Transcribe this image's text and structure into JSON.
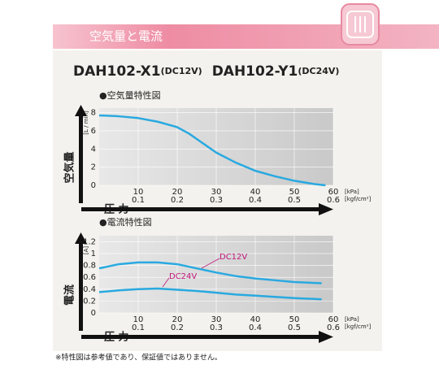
{
  "header": {
    "title": "空気量と電流"
  },
  "models": [
    {
      "model": "DAH102-X1",
      "voltage": "(DC12V)"
    },
    {
      "model": "DAH102-Y1",
      "voltage": "(DC24V)"
    }
  ],
  "footnote": "※特性図は参考値であり、保証値ではありません。",
  "chart_data": [
    {
      "type": "line",
      "title": "●空気量特性図",
      "x_label": "圧 力",
      "y_label": "空気量",
      "y_unit": "[L / min]",
      "x_unit": "[kPa]",
      "x2_unit": "[kgf/cm²]",
      "xlim": [
        0,
        60
      ],
      "xticks": [
        10,
        20,
        30,
        40,
        50,
        60
      ],
      "x2lim": [
        0,
        0.6
      ],
      "x2ticks": [
        0.1,
        0.2,
        0.3,
        0.4,
        0.5,
        0.6
      ],
      "ylim": [
        0,
        8.5
      ],
      "yticks": [
        0,
        2,
        4,
        6,
        8
      ],
      "grid": true,
      "series": [
        {
          "color": "#29a9e0",
          "x": [
            0,
            5,
            10,
            15,
            20,
            23,
            26,
            30,
            35,
            40,
            45,
            50,
            55,
            58
          ],
          "values": [
            7.7,
            7.6,
            7.4,
            7.0,
            6.4,
            5.7,
            4.8,
            3.6,
            2.5,
            1.6,
            1.0,
            0.5,
            0.15,
            0
          ]
        }
      ]
    },
    {
      "type": "line",
      "title": "●電流特性図",
      "x_label": "圧 力",
      "y_label": "電流",
      "y_unit": "[A]",
      "x_unit": "[kPa]",
      "x2_unit": "[kgf/cm²]",
      "xlim": [
        0,
        60
      ],
      "xticks": [
        10,
        20,
        30,
        40,
        50,
        60
      ],
      "x2lim": [
        0,
        0.6
      ],
      "x2ticks": [
        0.1,
        0.2,
        0.3,
        0.4,
        0.5,
        0.6
      ],
      "ylim": [
        0,
        1.3
      ],
      "yticks": [
        0,
        0.2,
        0.4,
        0.6,
        0.8,
        1,
        1.2
      ],
      "grid": true,
      "series": [
        {
          "name": "DC12V",
          "color": "#29a9e0",
          "x": [
            0,
            5,
            10,
            15,
            20,
            25,
            30,
            35,
            40,
            45,
            50,
            57
          ],
          "values": [
            0.75,
            0.82,
            0.85,
            0.85,
            0.82,
            0.75,
            0.68,
            0.62,
            0.58,
            0.55,
            0.52,
            0.5
          ]
        },
        {
          "name": "DC24V",
          "color": "#29a9e0",
          "x": [
            0,
            5,
            10,
            15,
            20,
            25,
            30,
            35,
            40,
            45,
            50,
            57
          ],
          "values": [
            0.35,
            0.38,
            0.4,
            0.41,
            0.39,
            0.37,
            0.34,
            0.31,
            0.29,
            0.27,
            0.25,
            0.23
          ]
        }
      ]
    }
  ]
}
